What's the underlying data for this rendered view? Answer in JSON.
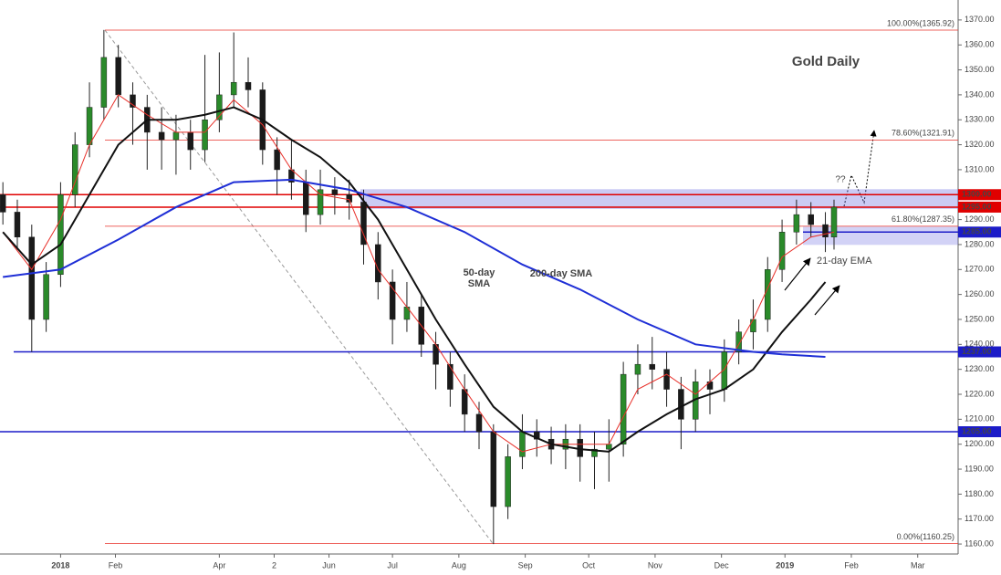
{
  "chart_data": {
    "type": "candlestick",
    "title": "Gold Daily",
    "x": [
      -20,
      -15,
      -10,
      -5,
      0,
      5,
      10,
      15,
      20,
      25,
      30,
      35,
      40,
      45,
      50,
      55,
      60,
      65,
      70,
      75,
      80,
      85,
      90,
      95,
      100,
      105,
      110,
      115,
      120,
      125,
      130,
      135,
      140,
      145,
      150,
      155,
      160,
      165,
      170,
      175,
      180,
      185,
      190,
      195,
      200,
      205,
      210,
      215,
      220,
      225,
      230,
      235,
      240,
      245,
      250,
      255,
      260,
      265,
      268
    ],
    "open": [
      1300,
      1293,
      1283,
      1250,
      1268,
      1300,
      1320,
      1335,
      1355,
      1340,
      1335,
      1325,
      1322,
      1325,
      1318,
      1330,
      1340,
      1345,
      1342,
      1318,
      1310,
      1305,
      1292,
      1302,
      1300,
      1297,
      1280,
      1265,
      1250,
      1255,
      1240,
      1232,
      1222,
      1212,
      1205,
      1175,
      1195,
      1205,
      1202,
      1198,
      1202,
      1195,
      1198,
      1200,
      1228,
      1232,
      1230,
      1222,
      1210,
      1225,
      1222,
      1237,
      1245,
      1250,
      1270,
      1285,
      1292,
      1288,
      1283
    ],
    "high": [
      1305,
      1298,
      1288,
      1273,
      1305,
      1325,
      1345,
      1366,
      1360,
      1345,
      1340,
      1335,
      1332,
      1330,
      1356,
      1357,
      1365,
      1355,
      1345,
      1323,
      1322,
      1310,
      1310,
      1307,
      1306,
      1302,
      1285,
      1270,
      1265,
      1260,
      1245,
      1237,
      1228,
      1217,
      1208,
      1200,
      1212,
      1210,
      1207,
      1208,
      1208,
      1205,
      1210,
      1233,
      1240,
      1243,
      1237,
      1227,
      1230,
      1230,
      1242,
      1250,
      1258,
      1275,
      1290,
      1298,
      1297,
      1293,
      1298
    ],
    "low": [
      1288,
      1278,
      1237,
      1245,
      1263,
      1295,
      1315,
      1330,
      1335,
      1320,
      1310,
      1310,
      1308,
      1310,
      1313,
      1325,
      1335,
      1335,
      1312,
      1300,
      1298,
      1285,
      1288,
      1292,
      1290,
      1272,
      1258,
      1240,
      1245,
      1235,
      1222,
      1215,
      1205,
      1198,
      1160,
      1170,
      1190,
      1195,
      1192,
      1190,
      1185,
      1182,
      1185,
      1195,
      1220,
      1222,
      1215,
      1198,
      1205,
      1212,
      1217,
      1232,
      1238,
      1245,
      1265,
      1280,
      1283,
      1277,
      1278
    ],
    "close": [
      1293,
      1283,
      1250,
      1268,
      1300,
      1320,
      1335,
      1355,
      1340,
      1335,
      1325,
      1322,
      1325,
      1318,
      1330,
      1340,
      1345,
      1342,
      1318,
      1310,
      1305,
      1292,
      1302,
      1300,
      1297,
      1280,
      1265,
      1250,
      1255,
      1240,
      1232,
      1222,
      1212,
      1205,
      1175,
      1195,
      1205,
      1202,
      1198,
      1202,
      1195,
      1198,
      1200,
      1228,
      1232,
      1230,
      1222,
      1210,
      1225,
      1222,
      1237,
      1245,
      1250,
      1270,
      1285,
      1292,
      1288,
      1283,
      1295
    ],
    "up_color": "#2a8a2a",
    "down_color": "#1a1a1a",
    "lines": [
      {
        "color": "#e8302a",
        "x": [
          -20,
          -10,
          0,
          10,
          20,
          30,
          40,
          50,
          60,
          70,
          80,
          90,
          100,
          110,
          120,
          130,
          140,
          150,
          160,
          170,
          180,
          190,
          200,
          210,
          220,
          230,
          240,
          250,
          260,
          268
        ],
        "values": [
          1285,
          1270,
          1290,
          1320,
          1340,
          1332,
          1325,
          1325,
          1338,
          1328,
          1310,
          1300,
          1298,
          1270,
          1255,
          1240,
          1222,
          1205,
          1197,
          1200,
          1200,
          1200,
          1222,
          1228,
          1220,
          1230,
          1250,
          1275,
          1283,
          1285
        ]
      },
      {
        "color": "#111111",
        "x": [
          -20,
          -10,
          0,
          10,
          20,
          30,
          40,
          50,
          60,
          70,
          80,
          90,
          100,
          110,
          120,
          130,
          140,
          150,
          160,
          170,
          180,
          190,
          200,
          210,
          220,
          230,
          240,
          250,
          260,
          265
        ],
        "values": [
          1285,
          1272,
          1280,
          1300,
          1320,
          1330,
          1330,
          1332,
          1335,
          1330,
          1322,
          1315,
          1305,
          1290,
          1270,
          1250,
          1232,
          1215,
          1205,
          1200,
          1198,
          1197,
          1205,
          1212,
          1218,
          1222,
          1230,
          1245,
          1258,
          1265
        ]
      },
      {
        "color": "#1f2fd6",
        "x": [
          -20,
          0,
          20,
          40,
          60,
          80,
          100,
          120,
          140,
          160,
          180,
          200,
          220,
          240,
          250,
          265
        ],
        "values": [
          1267,
          1270,
          1282,
          1295,
          1305,
          1306,
          1302,
          1295,
          1285,
          1272,
          1262,
          1250,
          1240,
          1237,
          1236,
          1235
        ]
      }
    ],
    "levels": [
      {
        "value": 1300,
        "label": "1300.00",
        "color": "#e00000"
      },
      {
        "value": 1295,
        "label": "1295.00",
        "color": "#e00000"
      },
      {
        "value": 1285,
        "label": "1285.00",
        "color": "#1c1cc8"
      },
      {
        "value": 1237,
        "label": "1237.00",
        "color": "#1c1cc8"
      },
      {
        "value": 1205,
        "label": "1205.00",
        "color": "#1c1cc8"
      }
    ],
    "fib": [
      {
        "value": 1365.92,
        "label": "100.00%(1365.92)"
      },
      {
        "value": 1321.91,
        "label": "78.60%(1321.91)"
      },
      {
        "value": 1287.35,
        "label": "61.80%(1287.35)"
      },
      {
        "value": 1160.25,
        "label": "0.00%(1160.25)"
      }
    ],
    "annotations": [
      "Gold Daily",
      "50-day",
      "SMA",
      "200-day SMA",
      "21-day EMA",
      "??"
    ],
    "xlim": [
      -21,
      311
    ],
    "ylim": [
      1156,
      1378
    ],
    "xticks": [
      {
        "value": 0,
        "label": "2018"
      },
      {
        "value": 19,
        "label": "Feb"
      },
      {
        "value": 55,
        "label": "Apr"
      },
      {
        "value": 74,
        "label": "2"
      },
      {
        "value": 93,
        "label": "Jun"
      },
      {
        "value": 115,
        "label": "Jul"
      },
      {
        "value": 138,
        "label": "Aug"
      },
      {
        "value": 161,
        "label": "Sep"
      },
      {
        "value": 183,
        "label": "Oct"
      },
      {
        "value": 206,
        "label": "Nov"
      },
      {
        "value": 229,
        "label": "Dec"
      },
      {
        "value": 251,
        "label": "2019"
      },
      {
        "value": 274,
        "label": "Feb"
      },
      {
        "value": 297,
        "label": "Mar"
      }
    ],
    "yticks": [
      {
        "value": 1160,
        "label": "1160.00"
      },
      {
        "value": 1170,
        "label": "1170.00"
      },
      {
        "value": 1180,
        "label": "1180.00"
      },
      {
        "value": 1190,
        "label": "1190.00"
      },
      {
        "value": 1200,
        "label": "1200.00"
      },
      {
        "value": 1210,
        "label": "1210.00"
      },
      {
        "value": 1220,
        "label": "1220.00"
      },
      {
        "value": 1230,
        "label": "1230.00"
      },
      {
        "value": 1240,
        "label": "1240.00"
      },
      {
        "value": 1250,
        "label": "1250.00"
      },
      {
        "value": 1260,
        "label": "1260.00"
      },
      {
        "value": 1270,
        "label": "1270.00"
      },
      {
        "value": 1280,
        "label": "1280.00"
      },
      {
        "value": 1290,
        "label": "1290.00"
      },
      {
        "value": 1300,
        "label": "1300.00"
      },
      {
        "value": 1310,
        "label": "1310.00"
      },
      {
        "value": 1320,
        "label": "1320.00"
      },
      {
        "value": 1330,
        "label": "1330.00"
      },
      {
        "value": 1340,
        "label": "1340.00"
      },
      {
        "value": 1350,
        "label": "1350.00"
      },
      {
        "value": 1360,
        "label": "1360.00"
      },
      {
        "value": 1370,
        "label": "1370.00"
      }
    ],
    "grid": false
  }
}
